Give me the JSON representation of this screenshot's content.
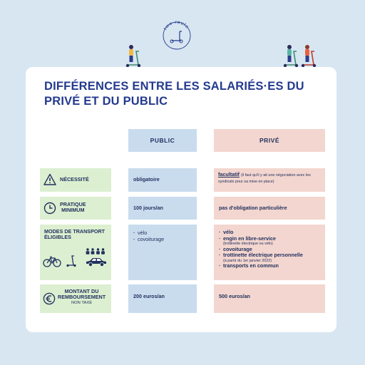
{
  "logo": {
    "text": "two roule"
  },
  "title": "Différences entre les salariés·es du privé et du public",
  "columns": {
    "public": "PUBLIC",
    "private": "PRIVÉ"
  },
  "rows": {
    "necessity": {
      "label": "NÉCESSITÉ",
      "public": "obligatoire",
      "private_bold": "facultatif",
      "private_small": "(il faut qu'il y ait une négociation avec les syndicats pour sa mise en place)"
    },
    "practice": {
      "label_line1": "PRATIQUE",
      "label_line2": "MINIMUM",
      "public": "100 jours/an",
      "private": "pas d'obligation particulière"
    },
    "transport": {
      "label_line1": "MODES DE TRANSPORT",
      "label_line2": "ÉLIGIBLES",
      "public": [
        "vélo",
        "covoiturage"
      ],
      "private": {
        "item1": "vélo",
        "item2": "engin en libre-service",
        "item2_note": "(trottinette électrique ou vélo)",
        "item3": "covoiturage",
        "item4": "trottinette électrique personnelle",
        "item4_note": "(à partir du 1er janvier 2022)",
        "item5": "transports en commun"
      }
    },
    "amount": {
      "label_line1": "MONTANT DU",
      "label_line2": "REMBOURSEMENT",
      "label_note": "NON TAXÉ",
      "public": "200 euros/an",
      "private": "500 euros/an"
    }
  },
  "colors": {
    "background": "#d8e6f1",
    "public": "#c9dcee",
    "private": "#f3d6cf",
    "label": "#dcefd0",
    "title": "#243a8f"
  },
  "icons": [
    "warning-icon",
    "clock-icon",
    "bicycle-icon",
    "scooter-icon",
    "people-icon",
    "car-icon",
    "euro-icon"
  ]
}
